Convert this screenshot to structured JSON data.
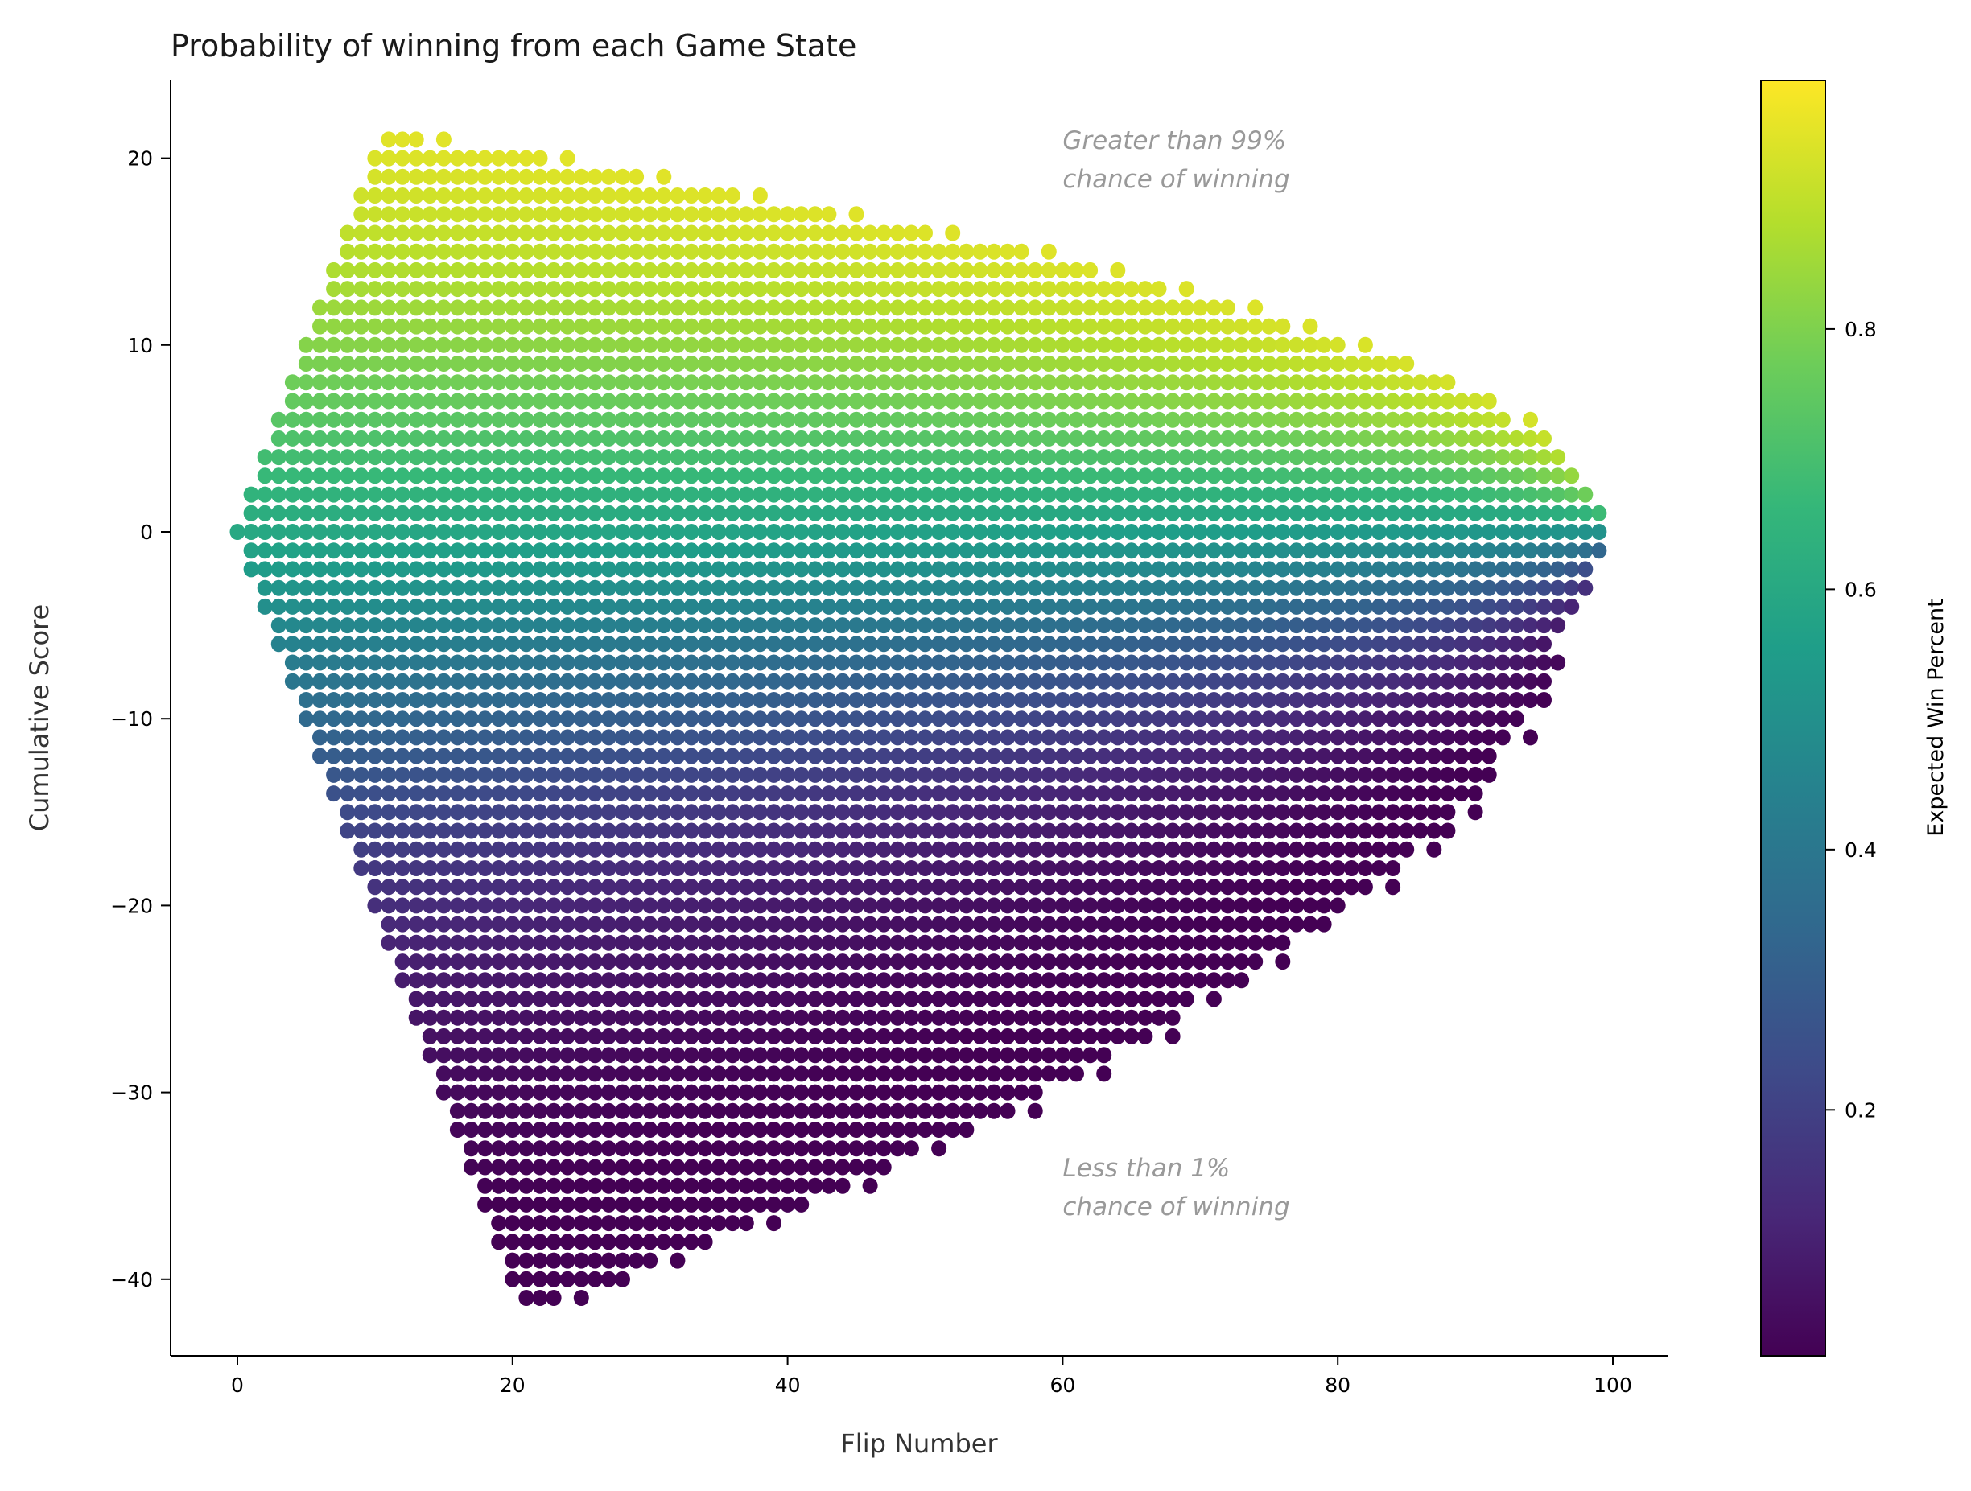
{
  "chart_data": {
    "type": "scatter",
    "title": "Probability of winning from each Game State",
    "xlabel": "Flip Number",
    "ylabel": "Cumulative Score",
    "xlim": [
      -5,
      104
    ],
    "ylim": [
      -44,
      24
    ],
    "xticks": [
      0,
      20,
      40,
      60,
      80,
      100
    ],
    "xtick_labels": [
      "0",
      "20",
      "40",
      "60",
      "80",
      "100"
    ],
    "yticks": [
      20,
      10,
      0,
      -10,
      -20,
      -30,
      -40
    ],
    "ytick_labels": [
      "20",
      "10",
      "0",
      "−10",
      "−20",
      "−30",
      "−40"
    ],
    "grid": false,
    "colorbar": {
      "label": "Expected Win Percent",
      "colormap": "viridis",
      "range": [
        0.011,
        0.991
      ],
      "ticks": [
        0.2,
        0.4,
        0.6,
        0.8
      ],
      "tick_labels": [
        "0.2",
        "0.4",
        "0.6",
        "0.8"
      ]
    },
    "annotations": [
      {
        "lines": [
          "Greater than 99%",
          "chance of winning"
        ],
        "x": 60,
        "y": 20.5
      },
      {
        "lines": [
          "Less than 1%",
          "chance of winning"
        ],
        "x": 60,
        "y": -34.5
      }
    ],
    "points_description": "Each row = a cumulative score; points at every flip from ceil(|score|/2) up to max_flip, plus an optional isolated extra flip.",
    "rows": [
      [
        21,
        13,
        15
      ],
      [
        20,
        22,
        24
      ],
      [
        19,
        29,
        31
      ],
      [
        18,
        36,
        38
      ],
      [
        17,
        43,
        45
      ],
      [
        16,
        50,
        52
      ],
      [
        15,
        57,
        59
      ],
      [
        14,
        62,
        64
      ],
      [
        13,
        67,
        69
      ],
      [
        12,
        72,
        74
      ],
      [
        11,
        76,
        78
      ],
      [
        10,
        80,
        82
      ],
      [
        9,
        85,
        null
      ],
      [
        8,
        88,
        null
      ],
      [
        7,
        91,
        null
      ],
      [
        6,
        92,
        94
      ],
      [
        5,
        95,
        null
      ],
      [
        4,
        96,
        null
      ],
      [
        3,
        97,
        null
      ],
      [
        2,
        98,
        null
      ],
      [
        1,
        99,
        null
      ],
      [
        0,
        99,
        null
      ],
      [
        -1,
        99,
        null
      ],
      [
        -2,
        98,
        null
      ],
      [
        -3,
        98,
        null
      ],
      [
        -4,
        97,
        null
      ],
      [
        -5,
        96,
        null
      ],
      [
        -6,
        95,
        null
      ],
      [
        -7,
        96,
        null
      ],
      [
        -8,
        95,
        null
      ],
      [
        -9,
        95,
        null
      ],
      [
        -10,
        93,
        null
      ],
      [
        -11,
        92,
        94
      ],
      [
        -12,
        91,
        null
      ],
      [
        -13,
        91,
        null
      ],
      [
        -14,
        90,
        null
      ],
      [
        -15,
        88,
        90
      ],
      [
        -16,
        88,
        null
      ],
      [
        -17,
        85,
        87
      ],
      [
        -18,
        84,
        null
      ],
      [
        -19,
        82,
        84
      ],
      [
        -20,
        80,
        null
      ],
      [
        -21,
        79,
        null
      ],
      [
        -22,
        76,
        null
      ],
      [
        -23,
        74,
        76
      ],
      [
        -24,
        73,
        null
      ],
      [
        -25,
        69,
        71
      ],
      [
        -26,
        68,
        null
      ],
      [
        -27,
        66,
        68
      ],
      [
        -28,
        63,
        null
      ],
      [
        -29,
        61,
        63
      ],
      [
        -30,
        58,
        null
      ],
      [
        -31,
        56,
        58
      ],
      [
        -32,
        53,
        null
      ],
      [
        -33,
        49,
        51
      ],
      [
        -34,
        47,
        null
      ],
      [
        -35,
        44,
        46
      ],
      [
        -36,
        41,
        null
      ],
      [
        -37,
        37,
        39
      ],
      [
        -38,
        34,
        null
      ],
      [
        -39,
        30,
        32
      ],
      [
        -40,
        28,
        null
      ],
      [
        -41,
        23,
        25
      ]
    ],
    "win_model": {
      "drift_per_flip": 0.04,
      "sigma": 1.6,
      "horizon": 100
    }
  }
}
